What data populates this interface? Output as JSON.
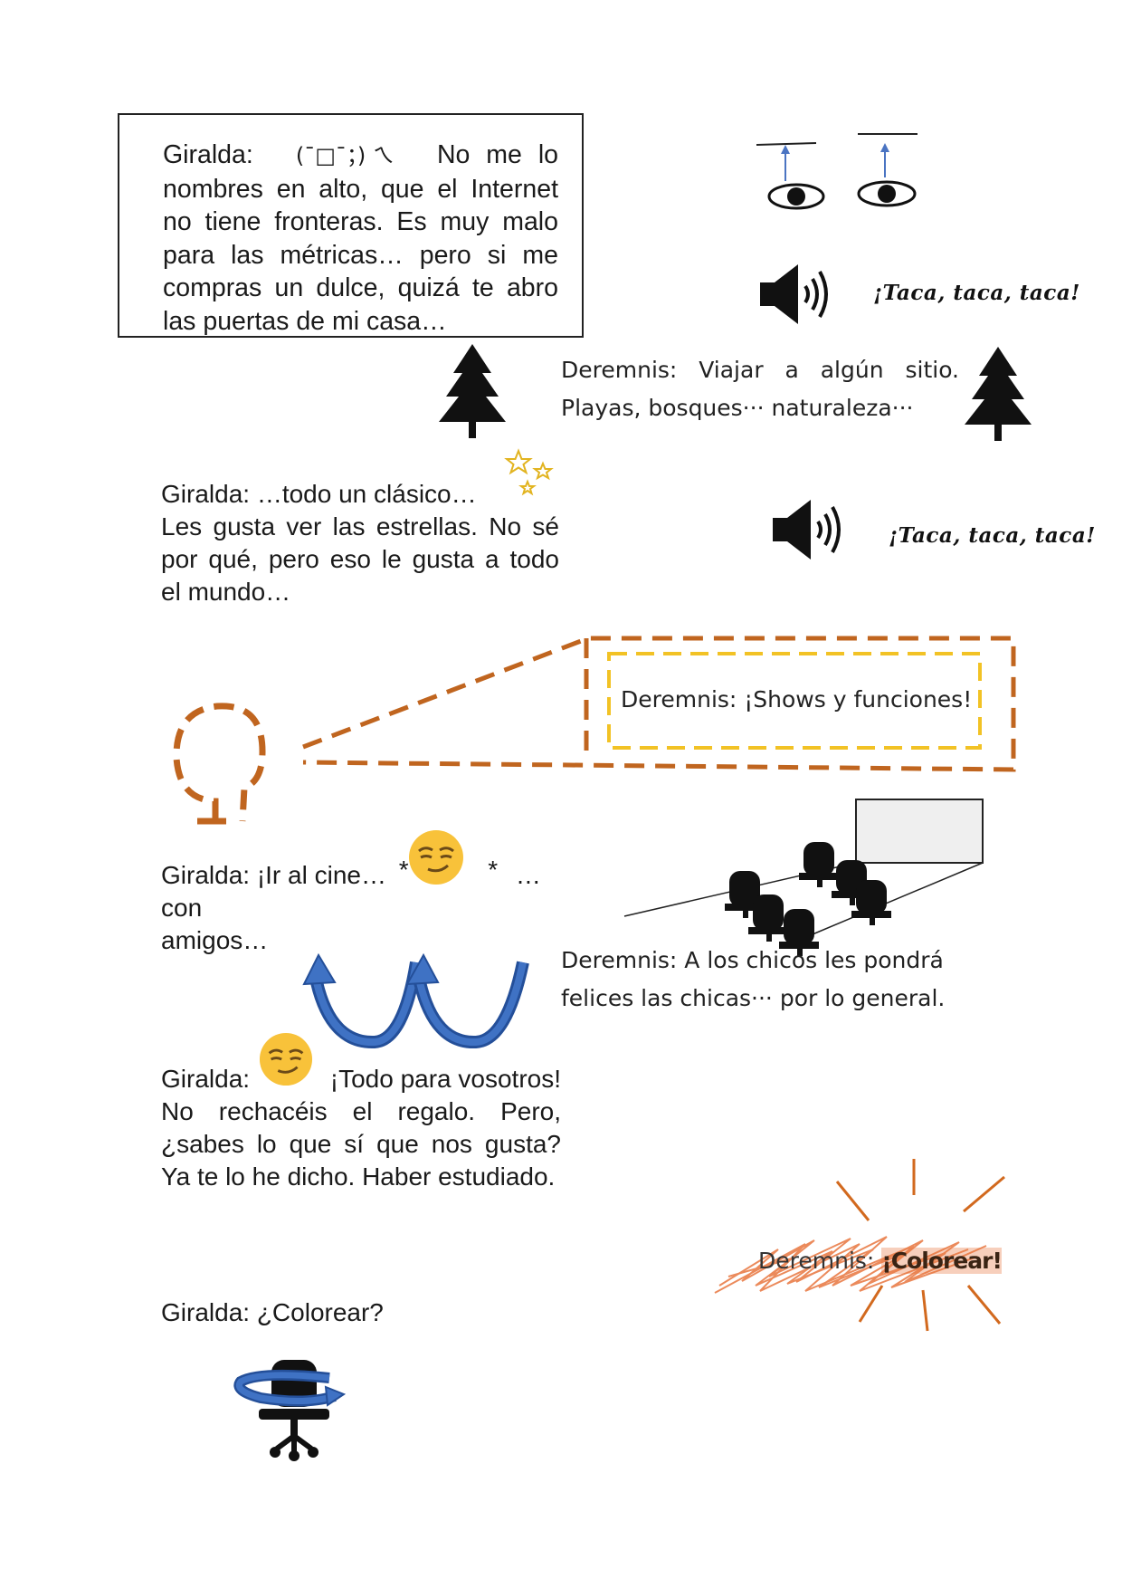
{
  "block1": {
    "speaker": "Giralda:",
    "kaomoji": "(¯□¯；) ㄟ",
    "line1_end": "No me lo",
    "text": "nombres en alto, que el Internet no tiene fronteras. Es muy malo para las métricas… pero si me compras un dulce, quizá te abro las puertas de mi casa…"
  },
  "sound": {
    "taca": "¡Taca, taca, taca!"
  },
  "deremnis1": {
    "line1": "Deremnis:  Viajar  a  algún  sitio.",
    "line2": "Playas, bosques··· naturaleza···"
  },
  "block2": {
    "line1": "Giralda: …todo un clásico…",
    "text": "Les gusta ver las estrellas. No sé por qué, pero eso le gusta a todo el mundo…"
  },
  "deremnis2": {
    "text": "Deremnis: ¡Shows y funciones!"
  },
  "block3": {
    "part1": "Giralda: ¡Ir al cine…",
    "star": "*",
    "part2": "…con",
    "line2": "amigos…"
  },
  "deremnis3": {
    "line1": "Deremnis: A los chicos les pondrá",
    "line2": "felices las chicas··· por lo general."
  },
  "block4": {
    "speaker": "Giralda:",
    "line1_end": "¡Todo para vosotros!",
    "text": "No rechacéis el regalo. Pero, ¿sabes lo que sí que nos gusta? Ya te lo he dicho. Haber estudiado."
  },
  "deremnis4": {
    "speaker": "Deremnis:",
    "shout": "¡Colorear!"
  },
  "block5": {
    "text": "Giralda:  ¿Colorear?"
  },
  "icons": [
    "raised-eyebrows-icon",
    "speaker-icon",
    "pine-tree-icon",
    "stars-icon",
    "smirk-emoji-icon",
    "head-silhouette-icon",
    "cinema-seats-icon",
    "curved-arrows-icon",
    "spinning-chair-icon"
  ],
  "colors": {
    "dash_orange": "#c0651f",
    "dash_yellow": "#f2c225",
    "arrow_blue": "#3b67b0",
    "emoji_yellow": "#f8c23a",
    "scribble": "#e8763f"
  }
}
